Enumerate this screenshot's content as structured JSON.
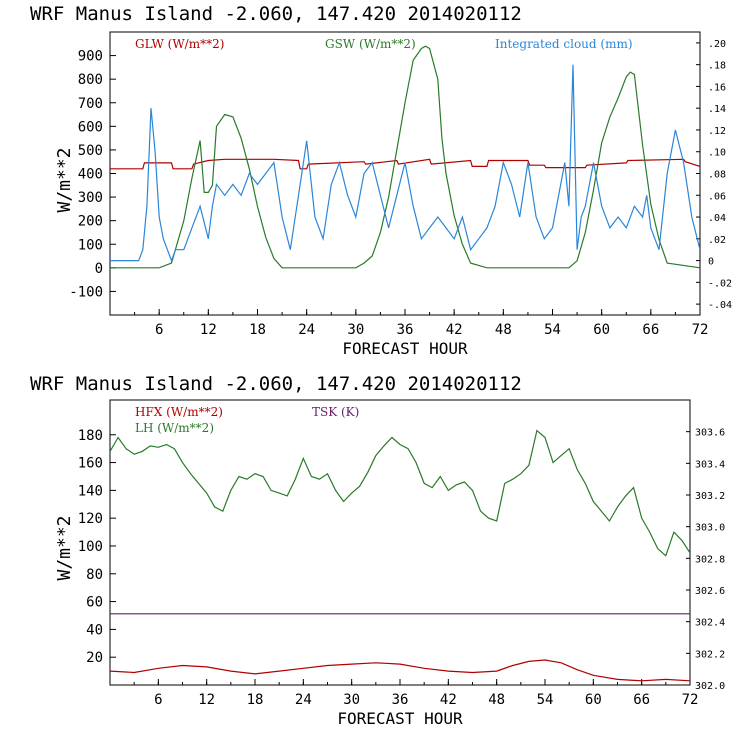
{
  "colors": {
    "red": "#b00000",
    "green": "#2a7a2a",
    "blue": "#2a86d8",
    "purple": "#6a1a6a",
    "axis": "#000000"
  },
  "charts": [
    {
      "title": "WRF   Manus Island  -2.060, 147.420  2014020112",
      "xlabel": "FORECAST HOUR",
      "ylabel": "W/m**2",
      "legend": [
        "GLW (W/m**2)",
        "GSW (W/m**2)",
        "Integrated cloud (mm)"
      ],
      "x_ticks": [
        "6",
        "12",
        "18",
        "24",
        "30",
        "36",
        "42",
        "48",
        "54",
        "60",
        "66",
        "72"
      ],
      "y_ticks": [
        "900",
        "800",
        "700",
        "600",
        "500",
        "400",
        "300",
        "200",
        "100",
        "0",
        "-100"
      ],
      "right_ticks": [
        ".20",
        ".18",
        ".16",
        ".14",
        ".12",
        ".10",
        ".08",
        ".06",
        ".04",
        ".02",
        "0",
        "-.02",
        "-.04"
      ]
    },
    {
      "title": "WRF   Manus Island  -2.060, 147.420  2014020112",
      "xlabel": "FORECAST HOUR",
      "ylabel": "W/m**2",
      "legend": [
        "HFX (W/m**2)",
        "LH  (W/m**2)",
        "TSK (K)"
      ],
      "x_ticks": [
        "6",
        "12",
        "18",
        "24",
        "30",
        "36",
        "42",
        "48",
        "54",
        "60",
        "66",
        "72"
      ],
      "y_ticks": [
        "180",
        "160",
        "140",
        "120",
        "100",
        "80",
        "60",
        "40",
        "20"
      ],
      "right_ticks": [
        "303.6",
        "303.4",
        "303.2",
        "303.0",
        "302.8",
        "302.6",
        "302.4",
        "302.2",
        "302.0"
      ]
    }
  ],
  "chart_data": [
    {
      "type": "line",
      "title": "WRF   Manus Island  -2.060, 147.420  2014020112",
      "xlabel": "FORECAST HOUR",
      "ylabel": "W/m**2",
      "xlim": [
        0,
        72
      ],
      "ylim": [
        -200,
        1000
      ],
      "y2lim": [
        -0.05,
        0.21
      ],
      "series": [
        {
          "name": "GLW (W/m**2)",
          "axis": "left",
          "x": [
            0,
            4,
            4.2,
            7.5,
            7.7,
            10,
            10.2,
            12,
            14,
            20,
            23,
            23.2,
            24,
            24.2,
            31,
            31.2,
            35,
            35.2,
            39,
            39.2,
            44,
            44.2,
            46,
            46.2,
            51,
            51.2,
            53,
            53.2,
            58,
            58.2,
            63,
            63.2,
            70,
            70.2,
            72
          ],
          "y": [
            420,
            420,
            445,
            445,
            420,
            420,
            440,
            455,
            460,
            460,
            455,
            420,
            420,
            440,
            450,
            440,
            455,
            440,
            460,
            440,
            455,
            430,
            430,
            455,
            455,
            435,
            435,
            425,
            425,
            435,
            445,
            455,
            460,
            450,
            430
          ]
        },
        {
          "name": "GSW (W/m**2)",
          "axis": "left",
          "x": [
            0,
            6,
            7.5,
            9,
            10,
            11,
            11.5,
            12,
            12.5,
            13,
            14,
            15,
            16,
            17,
            18,
            19,
            20,
            21,
            30,
            31,
            32,
            33,
            34,
            35,
            36,
            37,
            38,
            38.5,
            39,
            40,
            40.5,
            41,
            42,
            43,
            44,
            46,
            50,
            56,
            57,
            58,
            59,
            60,
            61,
            62,
            63,
            63.5,
            64,
            65,
            66,
            67,
            68,
            72
          ],
          "y": [
            0,
            0,
            20,
            200,
            380,
            540,
            320,
            320,
            350,
            600,
            650,
            640,
            550,
            420,
            260,
            130,
            40,
            0,
            0,
            20,
            50,
            150,
            300,
            500,
            700,
            880,
            930,
            940,
            930,
            800,
            550,
            400,
            220,
            100,
            20,
            0,
            0,
            0,
            30,
            150,
            330,
            530,
            640,
            720,
            810,
            830,
            820,
            520,
            270,
            120,
            20,
            0
          ]
        },
        {
          "name": "Integrated cloud (mm)",
          "axis": "right",
          "x": [
            0,
            3.5,
            4,
            4.5,
            5,
            5.5,
            6,
            6.5,
            7,
            7.5,
            8,
            9,
            10,
            11,
            12,
            12.5,
            13,
            14,
            15,
            16,
            17,
            18,
            19,
            20,
            21,
            22,
            23,
            24,
            25,
            26,
            27,
            28,
            29,
            30,
            31,
            32,
            33,
            34,
            35,
            36,
            37,
            38,
            39,
            40,
            41,
            42,
            43,
            44,
            45,
            46,
            47,
            48,
            49,
            50,
            51,
            52,
            53,
            54,
            55,
            55.5,
            56,
            56.5,
            57,
            57.5,
            58,
            59,
            60,
            61,
            62,
            63,
            64,
            65,
            65.5,
            66,
            67,
            68,
            69,
            70,
            71,
            72
          ],
          "y": [
            0,
            0,
            0.01,
            0.05,
            0.14,
            0.1,
            0.04,
            0.02,
            0.01,
            0,
            0.01,
            0.01,
            0.03,
            0.05,
            0.02,
            0.05,
            0.07,
            0.06,
            0.07,
            0.06,
            0.08,
            0.07,
            0.08,
            0.09,
            0.04,
            0.01,
            0.06,
            0.11,
            0.04,
            0.02,
            0.07,
            0.09,
            0.06,
            0.04,
            0.08,
            0.09,
            0.06,
            0.03,
            0.06,
            0.09,
            0.05,
            0.02,
            0.03,
            0.04,
            0.03,
            0.02,
            0.04,
            0.01,
            0.02,
            0.03,
            0.05,
            0.09,
            0.07,
            0.04,
            0.09,
            0.04,
            0.02,
            0.03,
            0.07,
            0.09,
            0.05,
            0.18,
            0.01,
            0.04,
            0.05,
            0.09,
            0.05,
            0.03,
            0.04,
            0.03,
            0.05,
            0.04,
            0.06,
            0.03,
            0.01,
            0.08,
            0.12,
            0.09,
            0.04,
            0.01
          ]
        }
      ]
    },
    {
      "type": "line",
      "title": "WRF   Manus Island  -2.060, 147.420  2014020112",
      "xlabel": "FORECAST HOUR",
      "ylabel": "W/m**2",
      "xlim": [
        0,
        72
      ],
      "ylim": [
        0,
        205
      ],
      "y2lim": [
        302.0,
        303.8
      ],
      "series": [
        {
          "name": "HFX (W/m**2)",
          "axis": "left",
          "x": [
            0,
            3,
            6,
            9,
            12,
            15,
            18,
            21,
            24,
            27,
            30,
            33,
            36,
            39,
            42,
            45,
            48,
            50,
            52,
            54,
            56,
            58,
            60,
            63,
            66,
            69,
            72
          ],
          "y": [
            10,
            9,
            12,
            14,
            13,
            10,
            8,
            10,
            12,
            14,
            15,
            16,
            15,
            12,
            10,
            9,
            10,
            14,
            17,
            18,
            16,
            11,
            7,
            4,
            3,
            4,
            3
          ]
        },
        {
          "name": "LH  (W/m**2)",
          "axis": "left",
          "x": [
            0,
            1,
            2,
            3,
            4,
            5,
            6,
            7,
            8,
            9,
            10,
            11,
            12,
            13,
            14,
            15,
            16,
            17,
            18,
            19,
            20,
            21,
            22,
            23,
            24,
            25,
            26,
            27,
            28,
            29,
            30,
            31,
            32,
            33,
            34,
            35,
            36,
            37,
            38,
            39,
            40,
            41,
            42,
            43,
            44,
            45,
            46,
            47,
            48,
            49,
            50,
            51,
            52,
            53,
            54,
            55,
            56,
            57,
            58,
            59,
            60,
            61,
            62,
            63,
            64,
            65,
            66,
            67,
            68,
            69,
            70,
            71,
            72
          ],
          "y": [
            168,
            178,
            170,
            166,
            168,
            172,
            171,
            173,
            170,
            160,
            152,
            145,
            138,
            128,
            125,
            140,
            150,
            148,
            152,
            150,
            140,
            138,
            136,
            148,
            163,
            150,
            148,
            152,
            140,
            132,
            138,
            143,
            153,
            165,
            172,
            178,
            173,
            170,
            160,
            145,
            142,
            150,
            140,
            144,
            146,
            140,
            125,
            120,
            118,
            145,
            148,
            152,
            158,
            183,
            178,
            160,
            165,
            170,
            155,
            145,
            132,
            125,
            118,
            128,
            136,
            142,
            120,
            110,
            98,
            93,
            110,
            104,
            95
          ]
        },
        {
          "name": "TSK (K)",
          "axis": "right",
          "x": [
            0,
            72
          ],
          "y": [
            302.45,
            302.45
          ]
        }
      ]
    }
  ]
}
